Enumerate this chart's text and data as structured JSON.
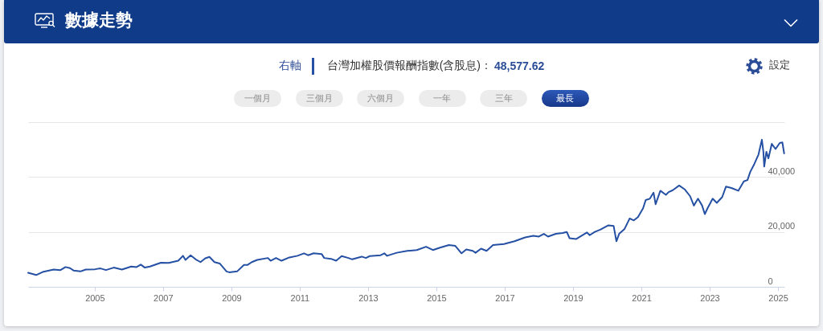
{
  "chart_data": {
    "type": "line",
    "title": "數據走勢",
    "legend_title": "右軸",
    "legend": "top",
    "grid": "y",
    "annotations": [
      "48,577.62",
      "設定",
      "一個月",
      "三個月",
      "六個月",
      "一年",
      "三年",
      "最長"
    ],
    "x": [
      "2003-01-20",
      "2003-04-16",
      "2003-06-24",
      "2003-10-19",
      "2004-01-01",
      "2004-02-24",
      "2004-04-12",
      "2004-05-22",
      "2004-07-31",
      "2004-09-27",
      "2005-01-04",
      "2005-03-03",
      "2005-05-01",
      "2005-07-23",
      "2005-10-19",
      "2006-01-26",
      "2006-03-25",
      "2006-05-08",
      "2006-06-21",
      "2006-08-14",
      "2006-12-09",
      "2007-03-03",
      "2007-06-13",
      "2007-08-03",
      "2007-08-29",
      "2007-10-23",
      "2007-12-16",
      "2008-02-06",
      "2008-03-28",
      "2008-05-11",
      "2008-07-04",
      "2008-08-29",
      "2008-11-10",
      "2008-12-09",
      "2009-03-03",
      "2009-05-15",
      "2009-06-24",
      "2009-08-07",
      "2009-10-04",
      "2010-01-26",
      "2010-02-24",
      "2010-04-23",
      "2010-06-21",
      "2010-09-13",
      "2010-12-09",
      "2011-02-16",
      "2011-04-01",
      "2011-05-30",
      "2011-08-25",
      "2011-09-20",
      "2011-12-02",
      "2012-01-26",
      "2012-03-25",
      "2012-06-05",
      "2012-07-15",
      "2012-10-25",
      "2012-12-09",
      "2013-01-19",
      "2013-05-15",
      "2013-06-24",
      "2013-07-23",
      "2013-11-03",
      "2014-02-24",
      "2014-06-06",
      "2014-09-13",
      "2014-11-25",
      "2015-02-02",
      "2015-05-15",
      "2015-07-23",
      "2015-09-27",
      "2015-11-17",
      "2016-01-26",
      "2016-02-24",
      "2016-04-23",
      "2016-06-21",
      "2016-08-29",
      "2016-12-24",
      "2017-04-16",
      "2017-08-07",
      "2017-11-03",
      "2018-01-01",
      "2018-02-24",
      "2018-04-09",
      "2018-07-02",
      "2018-09-13",
      "2018-10-26",
      "2018-11-25",
      "2019-02-02",
      "2019-05-30",
      "2019-06-28",
      "2019-08-22",
      "2019-10-19",
      "2020-01-15",
      "2020-03-10",
      "2020-04-09",
      "2020-05-08",
      "2020-07-05",
      "2020-08-29",
      "2020-10-12",
      "2020-11-25",
      "2021-01-19",
      "2021-02-16",
      "2021-04-01",
      "2021-05-11",
      "2021-06-02",
      "2021-07-23",
      "2021-09-20",
      "2021-10-19",
      "2021-12-02",
      "2022-02-09",
      "2022-04-09",
      "2022-06-06",
      "2022-07-16",
      "2022-08-29",
      "2022-10-12",
      "2022-11-10",
      "2022-12-09",
      "2023-02-02",
      "2023-03-18",
      "2023-05-15",
      "2023-06-24",
      "2023-08-22",
      "2023-11-03",
      "2024-01-01",
      "2024-02-09",
      "2024-03-10",
      "2024-04-23",
      "2024-06-06",
      "2024-07-12",
      "2024-07-28",
      "2024-08-06",
      "2024-08-29",
      "2024-09-20",
      "2024-10-26",
      "2024-12-05",
      "2025-01-19",
      "2025-02-16",
      "2025-03-07"
    ],
    "series": [
      {
        "name": "台灣加權股價報酬指數(含股息)：",
        "color": "#2550a3",
        "values": [
          5100,
          4300,
          5400,
          6300,
          6100,
          7200,
          6800,
          5900,
          5600,
          6300,
          6400,
          6700,
          6100,
          7000,
          6300,
          7400,
          7200,
          8100,
          7000,
          7400,
          8800,
          8700,
          9500,
          11300,
          9800,
          11500,
          10000,
          9000,
          10400,
          10900,
          9000,
          8500,
          5600,
          5300,
          5600,
          8000,
          8000,
          9000,
          9800,
          10500,
          9500,
          10500,
          9500,
          10700,
          11300,
          12200,
          11500,
          12200,
          11900,
          10500,
          10200,
          9500,
          11200,
          10500,
          10000,
          11000,
          10500,
          11200,
          11500,
          12200,
          11300,
          12400,
          13100,
          13400,
          14600,
          13400,
          14200,
          15200,
          14900,
          12200,
          13600,
          13100,
          12400,
          13900,
          13100,
          15200,
          15600,
          16600,
          18000,
          18600,
          18300,
          19300,
          18300,
          19300,
          19600,
          20000,
          17700,
          17400,
          19800,
          18800,
          20000,
          20800,
          22400,
          22200,
          16600,
          19300,
          21100,
          24900,
          24200,
          25400,
          28600,
          31600,
          32100,
          34300,
          30100,
          35000,
          33500,
          34500,
          35200,
          36900,
          35500,
          33000,
          29600,
          32100,
          29600,
          26500,
          28600,
          32100,
          30600,
          32700,
          36500,
          36000,
          35000,
          38400,
          38900,
          41900,
          44800,
          48200,
          53600,
          49200,
          43800,
          49200,
          46800,
          52100,
          50200,
          52400,
          52600,
          48600
        ]
      }
    ],
    "xlim": [
      "2003-01-20",
      "2025-03-10"
    ],
    "xticks": [
      "2005",
      "2007",
      "2009",
      "2011",
      "2013",
      "2015",
      "2017",
      "2019",
      "2021",
      "2023",
      "2025"
    ],
    "ylim": [
      0,
      60000
    ],
    "yticks": [
      0,
      {
        "value": 20000,
        "label": "20,000"
      },
      {
        "value": 40000,
        "label": "40,000"
      },
      {
        "value": 60000,
        "label": null
      }
    ]
  }
}
